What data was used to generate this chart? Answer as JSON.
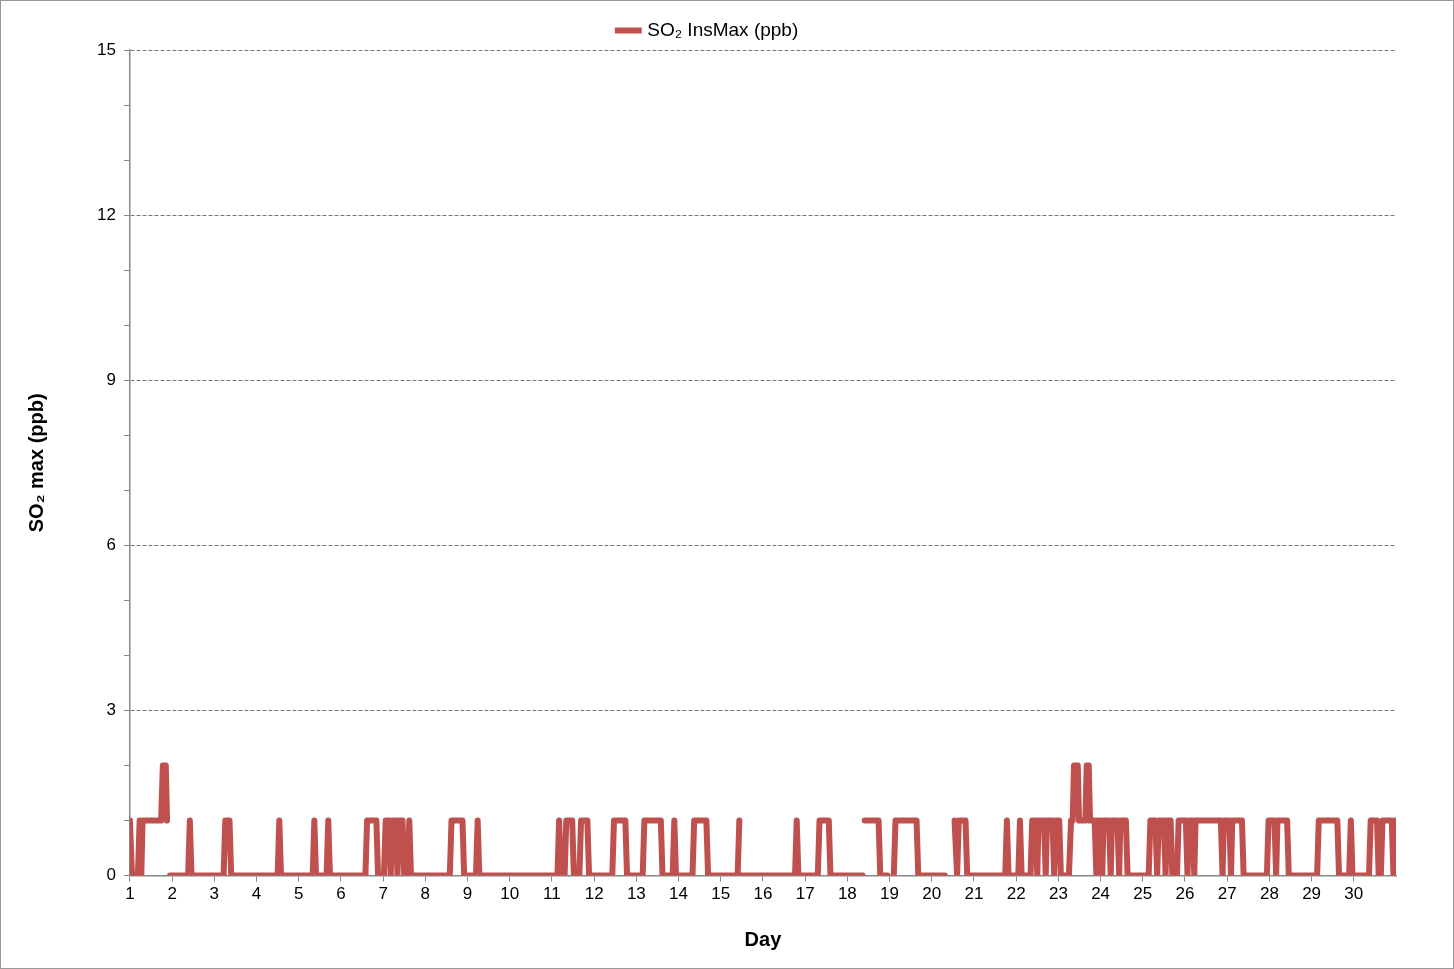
{
  "chart_data": {
    "type": "line",
    "xlabel": "Day",
    "ylabel": "SO₂ max (ppb)",
    "xlim": [
      1,
      31
    ],
    "xticks": [
      1,
      2,
      3,
      4,
      5,
      6,
      7,
      8,
      9,
      10,
      11,
      12,
      13,
      14,
      15,
      16,
      17,
      18,
      19,
      20,
      21,
      22,
      23,
      24,
      25,
      26,
      27,
      28,
      29,
      30
    ],
    "ylim": [
      0,
      15
    ],
    "yticks": [
      0,
      {
        "value": 1,
        "label": null
      },
      {
        "value": 2,
        "label": null
      },
      3,
      {
        "value": 4,
        "label": null
      },
      {
        "value": 5,
        "label": null
      },
      6,
      {
        "value": 7,
        "label": null
      },
      {
        "value": 8,
        "label": null
      },
      9,
      {
        "value": 10,
        "label": null
      },
      {
        "value": 11,
        "label": null
      },
      12,
      {
        "value": 13,
        "label": null
      },
      {
        "value": 14,
        "label": null
      },
      15
    ],
    "grid": "y",
    "legend": "top",
    "marker": "none",
    "line_style": "solid",
    "series": [
      {
        "name": "SO₂ InsMax (ppb)",
        "color": "#c0504d",
        "x": [
          1.0,
          1.05,
          1.19,
          1.23,
          1.27,
          1.3,
          1.74,
          1.78,
          1.85,
          1.88,
          1.9,
          1.92,
          1.95,
          2.38,
          2.42,
          2.46,
          3.22,
          3.26,
          3.36,
          3.4,
          4.5,
          4.54,
          4.58,
          5.33,
          5.37,
          5.41,
          5.66,
          5.7,
          5.74,
          6.37,
          6.4,
          6.42,
          6.58,
          6.62,
          6.84,
          6.88,
          7.02,
          7.06,
          7.14,
          7.18,
          7.21,
          7.3,
          7.34,
          7.37,
          7.46,
          7.5,
          7.58,
          7.62,
          7.66,
          8.58,
          8.62,
          8.88,
          8.92,
          9.2,
          9.24,
          9.28,
          11.13,
          11.17,
          11.21,
          11.3,
          11.34,
          11.48,
          11.52,
          11.65,
          11.69,
          11.84,
          11.88,
          12.43,
          12.47,
          12.74,
          12.78,
          13.15,
          13.19,
          13.58,
          13.62,
          13.86,
          13.9,
          13.94,
          14.33,
          14.37,
          14.66,
          14.7,
          15.4,
          15.44,
          15.46,
          15.48,
          16.76,
          16.8,
          16.84,
          17.3,
          17.34,
          17.56,
          17.6,
          18.36,
          18.38,
          18.41,
          18.74,
          18.78,
          18.95,
          18.98,
          19.1,
          19.14,
          19.64,
          19.68,
          20.31,
          20.4,
          20.54,
          20.6,
          20.64,
          20.8,
          20.84,
          21.74,
          21.78,
          21.82,
          22.05,
          22.09,
          22.13,
          22.34,
          22.38,
          22.46,
          22.5,
          22.53,
          22.66,
          22.7,
          22.73,
          22.86,
          22.9,
          22.93,
          23.02,
          23.06,
          23.25,
          23.3,
          23.34,
          23.37,
          23.46,
          23.49,
          23.64,
          23.67,
          23.72,
          23.75,
          23.86,
          23.9,
          23.93,
          24.0,
          24.04,
          24.07,
          24.2,
          24.24,
          24.27,
          24.4,
          24.44,
          24.47,
          24.6,
          24.64,
          25.14,
          25.18,
          25.3,
          25.34,
          25.38,
          25.5,
          25.54,
          25.57,
          25.66,
          25.7,
          25.81,
          25.85,
          26.02,
          26.06,
          26.09,
          26.18,
          26.22,
          26.25,
          26.85,
          26.89,
          26.92,
          27.05,
          27.09,
          27.12,
          27.35,
          27.39,
          27.94,
          27.98,
          28.12,
          28.16,
          28.19,
          28.42,
          28.46,
          29.13,
          29.17,
          29.61,
          29.65,
          29.89,
          29.93,
          29.97,
          30.36,
          30.4,
          30.55,
          30.59,
          30.64,
          30.68,
          30.9,
          30.94,
          30.97,
          30.99,
          31.0
        ],
        "values": [
          1,
          0,
          0,
          1,
          0,
          1,
          1,
          2,
          2,
          1,
          1,
          null,
          0,
          0,
          1,
          0,
          0,
          1,
          1,
          0,
          0,
          1,
          0,
          0,
          1,
          0,
          0,
          1,
          0,
          0,
          null,
          0,
          0,
          1,
          1,
          0,
          0,
          1,
          1,
          0,
          1,
          1,
          0,
          1,
          1,
          0,
          0,
          1,
          0,
          0,
          1,
          1,
          0,
          0,
          1,
          0,
          0,
          1,
          0,
          0,
          1,
          1,
          0,
          0,
          1,
          1,
          0,
          0,
          1,
          1,
          0,
          0,
          1,
          1,
          0,
          0,
          1,
          0,
          0,
          1,
          1,
          0,
          0,
          1,
          null,
          0,
          0,
          1,
          0,
          0,
          1,
          1,
          0,
          0,
          null,
          1,
          1,
          0,
          0,
          null,
          0,
          1,
          1,
          0,
          0,
          null,
          1,
          0,
          1,
          1,
          0,
          0,
          1,
          0,
          0,
          1,
          0,
          0,
          1,
          1,
          0,
          1,
          1,
          0,
          1,
          1,
          0,
          1,
          1,
          0,
          0,
          1,
          1,
          2,
          2,
          1,
          1,
          2,
          2,
          1,
          1,
          0,
          1,
          1,
          0,
          1,
          1,
          0,
          1,
          1,
          0,
          1,
          1,
          0,
          0,
          1,
          1,
          0,
          1,
          1,
          0,
          1,
          1,
          0,
          0,
          1,
          1,
          0,
          1,
          1,
          0,
          1,
          1,
          0,
          1,
          1,
          0,
          1,
          1,
          0,
          0,
          1,
          1,
          0,
          1,
          1,
          0,
          0,
          1,
          1,
          0,
          0,
          1,
          0,
          0,
          1,
          1,
          0,
          0,
          1,
          1,
          0,
          1,
          1,
          0
        ]
      }
    ]
  }
}
